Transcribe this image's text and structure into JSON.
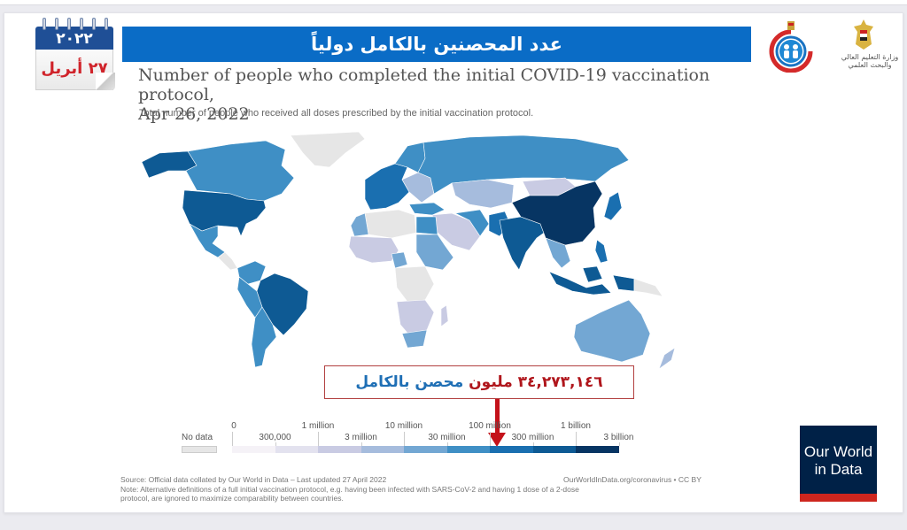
{
  "calendar": {
    "year": "٢٠٢٢",
    "day_month": "٢٧ أبريل"
  },
  "banner": {
    "title": "عدد المحصنين بالكامل دولياً"
  },
  "logos": {
    "ministry_of_health": "Ministry of Health and Population logo",
    "ministry_text": "وزارة التعليم العالي والبحث العلمي"
  },
  "chart": {
    "title_line1": "Number of people who completed the initial COVID-19 vaccination protocol,",
    "title_line2": "Apr 26, 2022",
    "subtitle": "Total number of people who received all doses prescribed by the initial vaccination protocol."
  },
  "callout": {
    "number": "٣٤,٢٧٣,١٤٦",
    "unit": "مليون",
    "label": "محصن بالكامل"
  },
  "chart_data": {
    "type": "choropleth-map",
    "title": "Number of people who completed the initial COVID-19 vaccination protocol, Apr 26, 2022",
    "subtitle": "Total number of people who received all doses prescribed by the initial vaccination protocol.",
    "legend": {
      "no_data_label": "No data",
      "bins_upper": [
        "0",
        "300,000",
        "1 million",
        "3 million",
        "10 million",
        "30 million",
        "100 million",
        "300 million",
        "1 billion",
        "3 billion"
      ],
      "tick_labels_top": [
        "0",
        "1 million",
        "10 million",
        "100 million",
        "1 billion"
      ],
      "tick_labels_bottom": [
        "300,000",
        "3 million",
        "30 million",
        "300 million",
        "3 billion"
      ],
      "colors": [
        "#f5f2f7",
        "#e3e2ef",
        "#c9cbe3",
        "#a6bcdd",
        "#73a7d3",
        "#3f8fc5",
        "#1a6fb0",
        "#0e5a94",
        "#073563"
      ],
      "no_data_color": "#e6e6e6",
      "highlight_bin": "30 million – 100 million"
    },
    "highlighted_value": 34273146,
    "regions": [
      {
        "name": "China",
        "bin": 8
      },
      {
        "name": "India",
        "bin": 7
      },
      {
        "name": "United States",
        "bin": 7
      },
      {
        "name": "Brazil",
        "bin": 7
      },
      {
        "name": "Indonesia",
        "bin": 7
      },
      {
        "name": "Pakistan",
        "bin": 6
      },
      {
        "name": "Japan",
        "bin": 6
      },
      {
        "name": "Russia",
        "bin": 5
      },
      {
        "name": "Canada",
        "bin": 5
      },
      {
        "name": "Mexico",
        "bin": 5
      },
      {
        "name": "Western Europe",
        "bin": 6
      },
      {
        "name": "Australia",
        "bin": 4
      },
      {
        "name": "Argentina",
        "bin": 5
      },
      {
        "name": "Egypt",
        "bin": 5
      },
      {
        "name": "Nigeria",
        "bin": 4
      },
      {
        "name": "Kazakhstan & Central Asia",
        "bin": 3
      },
      {
        "name": "Mongolia",
        "bin": 2
      },
      {
        "name": "Africa (most)",
        "bin": 2
      },
      {
        "name": "Greenland",
        "bin": -1
      },
      {
        "name": "Algeria / Libya",
        "bin": -1
      }
    ]
  },
  "footer": {
    "source": "Source: Official data collated by Our World in Data – Last updated 27 April 2022",
    "note_line1": "Note: Alternative definitions of a full initial vaccination protocol, e.g. having been infected with SARS-CoV-2 and having 1 dose of a 2-dose",
    "note_line2": "protocol, are ignored to maximize comparability between countries.",
    "url": "OurWorldInData.org/coronavirus • CC BY"
  },
  "owid_logo": {
    "line1": "Our World",
    "line2": "in Data"
  }
}
